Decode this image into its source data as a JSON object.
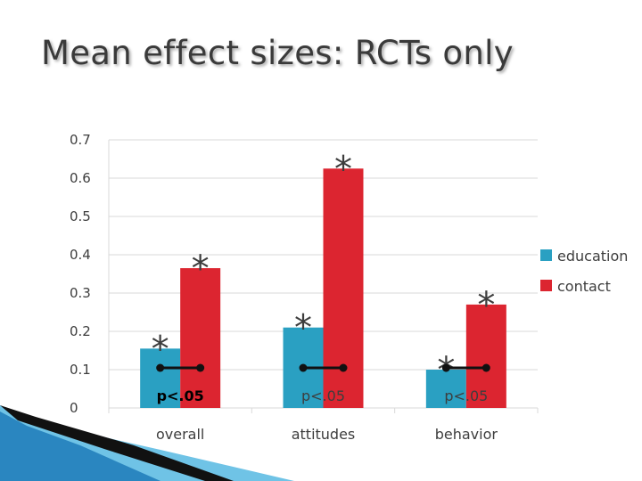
{
  "slide": {
    "title": "Mean effect sizes: RCTs only"
  },
  "colors": {
    "education": "#2aa0c2",
    "contact": "#dc2530",
    "grid": "#d9d9d9",
    "text": "#3d3d3d"
  },
  "chart_data": {
    "type": "bar",
    "title": "Mean effect sizes: RCTs only",
    "xlabel": "",
    "ylabel": "",
    "ylim": [
      0,
      0.7
    ],
    "yticks": [
      "0",
      "0.1",
      "0.2",
      "0.3",
      "0.4",
      "0.5",
      "0.6",
      "0.7"
    ],
    "grid": true,
    "legend_position": "right",
    "categories": [
      "overall",
      "attitudes",
      "behavior"
    ],
    "series": [
      {
        "name": "education",
        "values": [
          0.155,
          0.21,
          0.1
        ]
      },
      {
        "name": "contact",
        "values": [
          0.365,
          0.625,
          0.27
        ]
      }
    ],
    "significance_marker": "*",
    "comparison_labels": [
      "p<.05",
      "p<.05",
      "p<.05"
    ]
  }
}
